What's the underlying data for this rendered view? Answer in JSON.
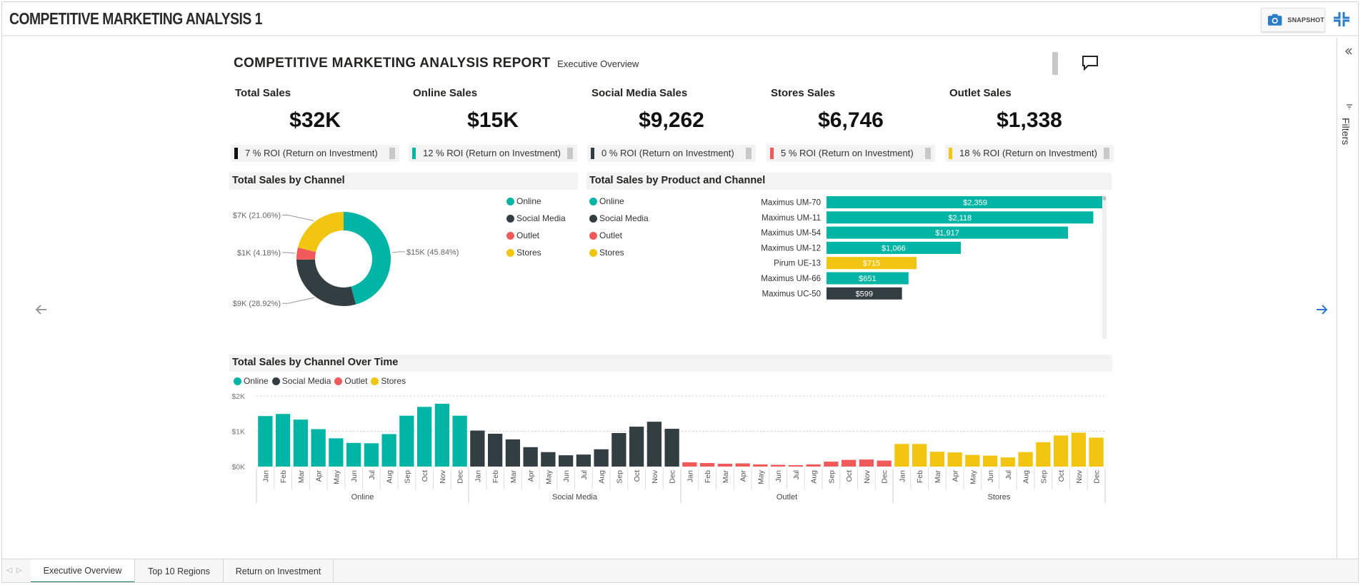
{
  "app": {
    "title": "COMPETITIVE MARKETING ANALYSIS 1",
    "snapshot_label": "SNAPSHOT"
  },
  "filters": {
    "label": "Filters"
  },
  "report": {
    "title": "COMPETITIVE MARKETING ANALYSIS REPORT",
    "subtitle": "Executive Overview"
  },
  "colors": {
    "online": "#00b5a5",
    "social": "#323e41",
    "outlet": "#f05a5a",
    "stores": "#f2c511",
    "accent": "#1a7f5f"
  },
  "kpis": [
    {
      "label": "Total Sales",
      "value": "$32K",
      "roi": "7 % ROI (Return on Investment)",
      "swatch": "#111111"
    },
    {
      "label": "Online Sales",
      "value": "$15K",
      "roi": "12 % ROI (Return on Investment)",
      "swatch": "#00b5a5"
    },
    {
      "label": "Social Media Sales",
      "value": "$9,262",
      "roi": "0 % ROI (Return on Investment)",
      "swatch": "#323e41"
    },
    {
      "label": "Stores Sales",
      "value": "$6,746",
      "roi": "5 % ROI (Return on Investment)",
      "swatch": "#f05a5a"
    },
    {
      "label": "Outlet Sales",
      "value": "$1,338",
      "roi": "18 % ROI (Return on Investment)",
      "swatch": "#f2c511"
    }
  ],
  "legend": [
    "Online",
    "Social Media",
    "Outlet",
    "Stores"
  ],
  "chart_data": [
    {
      "type": "pie",
      "title": "Total Sales by Channel",
      "categories": [
        "Online",
        "Social Media",
        "Outlet",
        "Stores"
      ],
      "values": [
        45.84,
        28.92,
        4.18,
        21.06
      ],
      "labels": [
        "$15K (45.84%)",
        "$9K (28.92%)",
        "$1K (4.18%)",
        "$7K (21.06%)"
      ]
    },
    {
      "type": "bar",
      "title": "Total Sales by Product and Channel",
      "categories": [
        "Maximus UM-70",
        "Maximus UM-11",
        "Maximus UM-54",
        "Maximus UM-12",
        "Pirum UE-13",
        "Maximus UM-66",
        "Maximus UC-50"
      ],
      "values": [
        2359,
        2118,
        1917,
        1066,
        715,
        651,
        599
      ],
      "value_labels": [
        "$2,359",
        "$2,118",
        "$1,917",
        "$1,066",
        "$715",
        "$651",
        "$599"
      ],
      "channels": [
        "Online",
        "Online",
        "Online",
        "Online",
        "Stores",
        "Online",
        "Social Media"
      ]
    },
    {
      "type": "bar",
      "title": "Total Sales by Channel Over Time",
      "months": [
        "Jan",
        "Feb",
        "Mar",
        "Apr",
        "May",
        "Jun",
        "Jul",
        "Aug",
        "Sep",
        "Oct",
        "Nov",
        "Dec"
      ],
      "ylim": [
        0,
        2000
      ],
      "yticks": [
        "$0K",
        "$1K",
        "$2K"
      ],
      "series": [
        {
          "name": "Online",
          "values": [
            1430,
            1490,
            1330,
            1060,
            800,
            670,
            660,
            920,
            1440,
            1690,
            1780,
            1440
          ]
        },
        {
          "name": "Social Media",
          "values": [
            1020,
            930,
            770,
            550,
            410,
            320,
            340,
            490,
            950,
            1130,
            1270,
            1070
          ]
        },
        {
          "name": "Outlet",
          "values": [
            120,
            100,
            80,
            90,
            60,
            50,
            40,
            60,
            140,
            190,
            200,
            170
          ]
        },
        {
          "name": "Stores",
          "values": [
            640,
            640,
            420,
            400,
            330,
            310,
            260,
            410,
            690,
            880,
            960,
            820
          ]
        }
      ]
    }
  ],
  "tabs": [
    "Executive Overview",
    "Top 10 Regions",
    "Return on Investment"
  ]
}
